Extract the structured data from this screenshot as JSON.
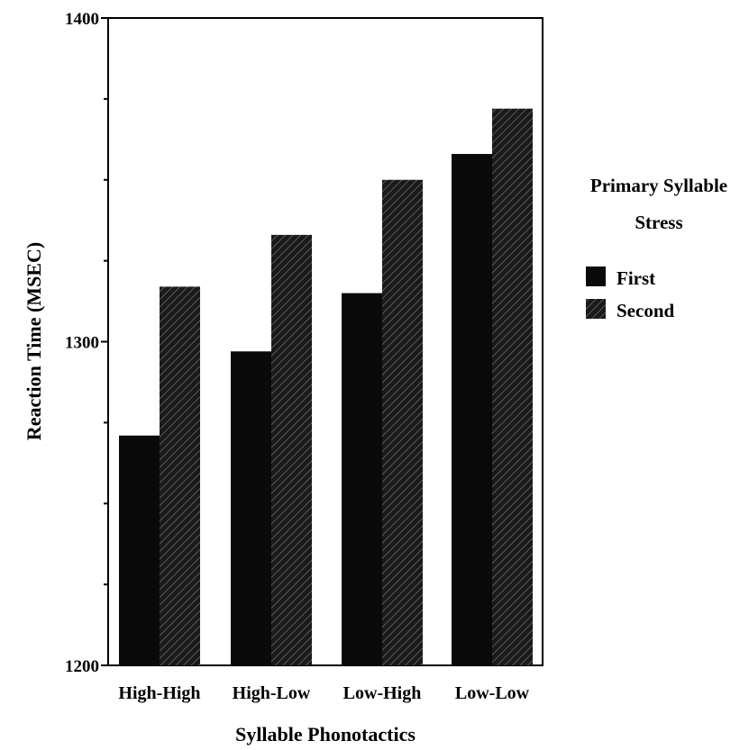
{
  "colors": {
    "first": "#0a0a0a",
    "second_base": "#1a1a1a",
    "second_hatch": "#5a5a5a",
    "axis": "#000000",
    "background": "#ffffff"
  },
  "chart_data": {
    "type": "bar",
    "title": "",
    "xlabel": "Syllable Phonotactics",
    "ylabel": "Reaction Time (MSEC)",
    "ylim": [
      1200,
      1400
    ],
    "yticks": [
      "1200",
      "1300",
      "1400"
    ],
    "categories": [
      "High-High",
      "High-Low",
      "Low-High",
      "Low-Low"
    ],
    "series": [
      {
        "name": "First",
        "values": [
          1271,
          1297,
          1315,
          1358
        ]
      },
      {
        "name": "Second",
        "values": [
          1317,
          1333,
          1350,
          1372
        ]
      }
    ],
    "legend": {
      "title_line1": "Primary Syllable",
      "title_line2": "Stress",
      "placement": "right"
    },
    "grid": false
  }
}
